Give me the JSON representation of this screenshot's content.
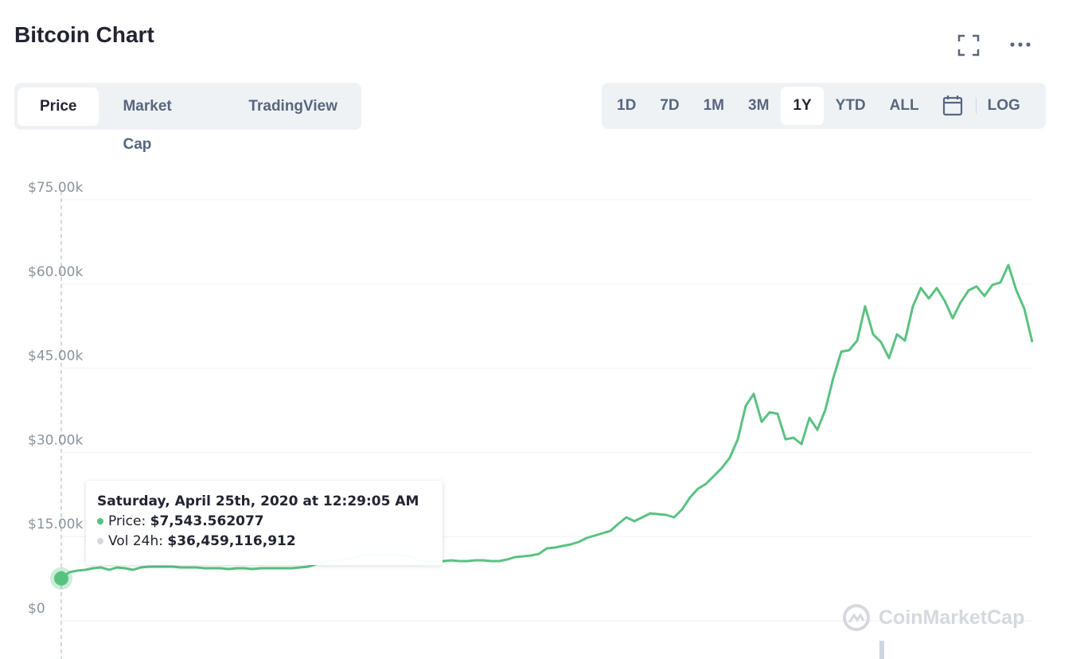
{
  "header": {
    "title": "Bitcoin Chart"
  },
  "tabs": [
    "Price",
    "Market Cap",
    "TradingView"
  ],
  "ranges": [
    "1D",
    "7D",
    "1M",
    "3M",
    "1Y",
    "YTD",
    "ALL"
  ],
  "log_button": "LOG",
  "chart_data": {
    "type": "line",
    "color": "#5ac281",
    "grid": true,
    "ylim": [
      0,
      75000
    ],
    "yticks": [
      {
        "value": 0,
        "label": "$0"
      },
      {
        "value": 15000,
        "label": "$15.00k"
      },
      {
        "value": 30000,
        "label": "$30.00k"
      },
      {
        "value": 45000,
        "label": "$45.00k"
      },
      {
        "value": 60000,
        "label": "$60.00k"
      },
      {
        "value": 75000,
        "label": "$75.00k"
      }
    ],
    "values": [
      7543.562077,
      8650,
      8930,
      9080,
      9360,
      9500,
      9080,
      9500,
      9360,
      9080,
      9500,
      9640,
      9640,
      9640,
      9640,
      9500,
      9500,
      9500,
      9360,
      9360,
      9360,
      9220,
      9360,
      9360,
      9220,
      9360,
      9360,
      9360,
      9360,
      9360,
      9500,
      9640,
      10070,
      10490,
      10640,
      10780,
      11060,
      11340,
      11630,
      11770,
      11630,
      11770,
      11770,
      11630,
      11490,
      10640,
      10490,
      10490,
      10640,
      10780,
      10640,
      10640,
      10780,
      10780,
      10640,
      10640,
      10920,
      11340,
      11490,
      11630,
      11910,
      12900,
      13050,
      13330,
      13610,
      14040,
      14750,
      15170,
      15600,
      16020,
      17300,
      18430,
      17730,
      18430,
      19140,
      19000,
      18860,
      18430,
      19850,
      21980,
      23540,
      24390,
      25810,
      27230,
      29070,
      32330,
      38290,
      40410,
      35450,
      37150,
      36870,
      32330,
      32610,
      31480,
      36160,
      34030,
      37580,
      43250,
      47930,
      48210,
      49910,
      56010,
      51040,
      49630,
      46790,
      51040,
      49910,
      56010,
      59270,
      57430,
      59270,
      57000,
      53880,
      56720,
      58850,
      59560,
      57860,
      59840,
      60270,
      63380,
      58850,
      55590,
      49630
    ]
  },
  "tooltip": {
    "date": "Saturday, April 25th, 2020 at 12:29:05 AM",
    "price_label": "Price:",
    "price": "$7,543.562077",
    "volume_label": "Vol 24h:",
    "volume": "$36,459,116,912"
  },
  "watermark": "CoinMarketCap"
}
